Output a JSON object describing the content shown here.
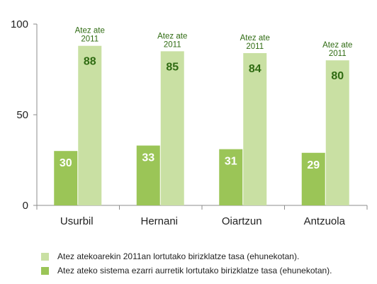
{
  "chart_data": {
    "type": "bar",
    "categories": [
      "Usurbil",
      "Hernani",
      "Oiartzun",
      "Antzuola"
    ],
    "series": [
      {
        "name": "Atez ateko sistema ezarri aurretik lortutako birizklatze tasa (ehunekotan).",
        "color": "#9bc557",
        "values": [
          30,
          33,
          31,
          29
        ]
      },
      {
        "name": "Atez atekoarekin 2011an lortutako birizklatze tasa (ehunekotan).",
        "color": "#c9e0a3",
        "values": [
          88,
          85,
          84,
          80
        ]
      }
    ],
    "ylim": [
      0,
      100
    ],
    "yticks": [
      "0",
      "50",
      "100"
    ],
    "annotations": [
      "Atez ate\n2011",
      "Atez ate\n2011",
      "Atez ate\n2011",
      "Atez ate\n2011"
    ],
    "value_label_colors": {
      "dark": "#ffffff",
      "light": "#2f6b12"
    },
    "grid": false,
    "legend_position": "bottom"
  },
  "legend": {
    "items": [
      {
        "label": "Atez atekoarekin 2011an lortutako birizklatze tasa (ehunekotan).",
        "color": "#c9e0a3"
      },
      {
        "label": "Atez ateko sistema ezarri aurretik lortutako birizklatze tasa (ehunekotan).",
        "color": "#9bc557"
      }
    ]
  }
}
